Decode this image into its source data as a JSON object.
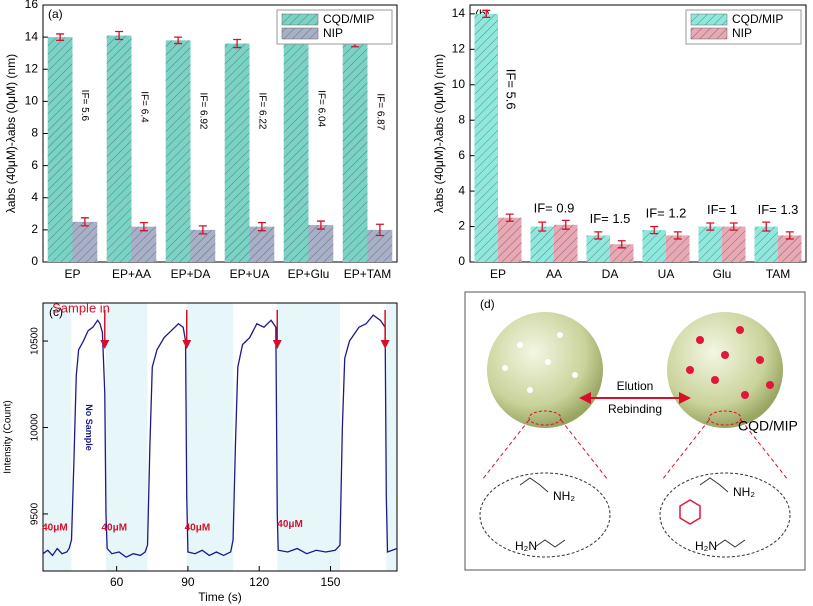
{
  "chart_data": [
    {
      "type": "bar",
      "panel": "(a)",
      "ylabel": "λabs (40μM)-λabs (0μM) (nm)",
      "categories": [
        "EP",
        "EP+AA",
        "EP+DA",
        "EP+UA",
        "EP+Glu",
        "EP+TAM"
      ],
      "series": [
        {
          "name": "CQD/MIP",
          "color": "#7ad3c4",
          "values": [
            14,
            14.1,
            13.8,
            13.6,
            13.8,
            13.7
          ],
          "errors": [
            0.2,
            0.25,
            0.2,
            0.25,
            0.2,
            0.3
          ]
        },
        {
          "name": "NIP",
          "color": "#a7b0c6",
          "values": [
            2.5,
            2.2,
            2.0,
            2.2,
            2.3,
            2.0
          ],
          "errors": [
            0.25,
            0.25,
            0.25,
            0.25,
            0.25,
            0.35
          ]
        }
      ],
      "annotations": [
        "IF= 5.6",
        "IF= 6.4",
        "IF= 6.92",
        "IF= 6.22",
        "IF= 6.04",
        "IF= 6.87"
      ],
      "ylim": [
        0,
        16
      ],
      "yticks": [
        0,
        2,
        4,
        6,
        8,
        10,
        12,
        14,
        16
      ],
      "legend": "upper right"
    },
    {
      "type": "bar",
      "panel": "(b)",
      "ylabel": "λabs (40μM)-λabs (0μM) (nm)",
      "categories": [
        "EP",
        "AA",
        "DA",
        "UA",
        "Glu",
        "TAM"
      ],
      "series": [
        {
          "name": "CQD/MIP",
          "color": "#8fe8dc",
          "values": [
            14,
            2.0,
            1.5,
            1.8,
            2.0,
            2.0
          ],
          "errors": [
            0.2,
            0.25,
            0.2,
            0.2,
            0.2,
            0.25
          ]
        },
        {
          "name": "NIP",
          "color": "#e8a8b4",
          "values": [
            2.5,
            2.1,
            1.0,
            1.5,
            2.0,
            1.5
          ],
          "errors": [
            0.2,
            0.25,
            0.2,
            0.2,
            0.2,
            0.2
          ]
        }
      ],
      "annotations": [
        "IF= 5.6",
        "IF= 0.9",
        "IF= 1.5",
        "IF= 1.2",
        "IF= 1",
        "IF= 1.3"
      ],
      "ylim": [
        0,
        14.5
      ],
      "yticks": [
        0,
        2,
        4,
        6,
        8,
        10,
        12,
        14
      ],
      "legend": "upper right"
    },
    {
      "type": "line",
      "panel": "(c)",
      "xlabel": "Time (s)",
      "ylabel": "Intensity (Count)",
      "color": "#1a1a8c",
      "x": [
        29,
        31,
        33,
        35,
        37,
        39,
        40,
        41,
        42,
        43,
        44,
        46,
        48,
        50,
        52,
        53,
        54,
        55,
        55.5,
        56,
        58,
        61,
        64,
        67,
        70,
        72,
        73,
        74,
        75,
        77,
        80,
        83,
        86,
        88,
        89,
        89.5,
        90,
        93,
        96,
        99,
        102,
        105,
        108,
        109,
        110,
        111,
        113,
        116,
        119,
        122,
        125,
        127,
        127.6,
        128,
        132,
        136,
        140,
        144,
        148,
        152,
        154,
        155,
        156,
        158,
        162,
        165,
        168,
        171,
        173,
        173.5,
        174,
        176,
        178
      ],
      "values": [
        9270,
        9290,
        9260,
        9300,
        9270,
        9280,
        9300,
        9350,
        9800,
        10300,
        10450,
        10500,
        10560,
        10580,
        10620,
        10600,
        10550,
        10200,
        9500,
        9300,
        9270,
        9280,
        9250,
        9270,
        9260,
        9280,
        9320,
        9900,
        10350,
        10450,
        10520,
        10560,
        10600,
        10580,
        10500,
        9600,
        9280,
        9270,
        9290,
        9260,
        9280,
        9260,
        9280,
        9350,
        9900,
        10350,
        10480,
        10520,
        10600,
        10580,
        10620,
        10580,
        9500,
        9290,
        9280,
        9300,
        9270,
        9290,
        9280,
        9290,
        9320,
        10000,
        10400,
        10500,
        10580,
        10600,
        10650,
        10620,
        10580,
        9600,
        9280,
        9290,
        9300
      ],
      "shaded_x": [
        [
          29,
          41
        ],
        [
          55.5,
          73
        ],
        [
          89.5,
          109
        ],
        [
          127.6,
          154
        ],
        [
          173.5,
          178
        ]
      ],
      "annotations": [
        "Sample in",
        "No Sample",
        "40μM",
        "40μM",
        "40μM",
        "40μM"
      ],
      "xlim": [
        29,
        178
      ],
      "xticks": [
        60,
        90,
        120,
        150
      ],
      "ylim": [
        9170,
        10720
      ],
      "yticks": [
        9500,
        10000,
        10500
      ]
    }
  ],
  "diagram": {
    "panel": "(d)",
    "arrow_top": "Elution",
    "arrow_bottom": "Rebinding",
    "particle_label": "CQD/MIP",
    "amines": [
      "NH₂",
      "H₂N",
      "NH₂",
      "H₂N"
    ]
  }
}
